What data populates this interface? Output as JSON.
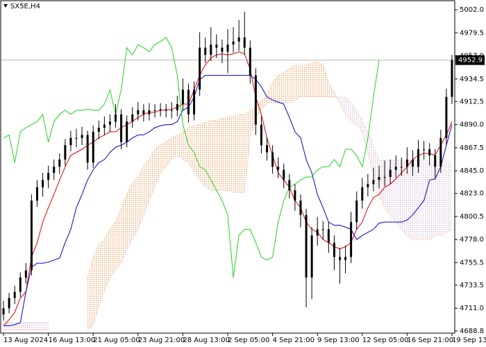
{
  "chart_data": {
    "type": "candlestick",
    "title": "SX5E,H4",
    "categories": [
      "13 Aug 2024",
      null,
      null,
      null,
      null,
      null,
      null,
      null,
      "16 Aug 13:00",
      null,
      null,
      null,
      null,
      null,
      null,
      null,
      "21 Aug 05:00",
      null,
      null,
      null,
      null,
      null,
      null,
      null,
      "23 Aug 21:00",
      null,
      null,
      null,
      null,
      null,
      null,
      null,
      "28 Aug 13:00",
      null,
      null,
      null,
      null,
      null,
      null,
      null,
      "2 Sep 05:00",
      null,
      null,
      null,
      null,
      null,
      null,
      null,
      "4 Sep 21:00",
      null,
      null,
      null,
      null,
      null,
      null,
      null,
      "9 Sep 13:00",
      null,
      null,
      null,
      null,
      null,
      null,
      null,
      "12 Sep 05:00",
      null,
      null,
      null,
      null,
      null,
      null,
      null,
      "16 Sep 21:00",
      null,
      null,
      null,
      null,
      null,
      null,
      null,
      "19 Sep 13:00"
    ],
    "candles": [
      [
        4705,
        4718,
        4699,
        4711
      ],
      [
        4711,
        4726,
        4706,
        4721
      ],
      [
        4721,
        4733,
        4715,
        4727
      ],
      [
        4727,
        4746,
        4722,
        4741
      ],
      [
        4741,
        4755,
        4735,
        4748
      ],
      [
        4748,
        4822,
        4743,
        4816
      ],
      [
        4816,
        4836,
        4810,
        4829
      ],
      [
        4829,
        4843,
        4820,
        4836
      ],
      [
        4836,
        4850,
        4828,
        4843
      ],
      [
        4843,
        4856,
        4836,
        4849
      ],
      [
        4849,
        4862,
        4842,
        4856
      ],
      [
        4856,
        4876,
        4850,
        4870
      ],
      [
        4870,
        4884,
        4864,
        4877
      ],
      [
        4877,
        4886,
        4868,
        4877
      ],
      [
        4877,
        4888,
        4870,
        4880
      ],
      [
        4880,
        4884,
        4846,
        4853
      ],
      [
        4853,
        4889,
        4848,
        4883
      ],
      [
        4883,
        4894,
        4876,
        4887
      ],
      [
        4887,
        4898,
        4880,
        4890
      ],
      [
        4890,
        4900,
        4883,
        4893
      ],
      [
        4893,
        4910,
        4887,
        4900
      ],
      [
        4900,
        4905,
        4866,
        4873
      ],
      [
        4873,
        4899,
        4868,
        4893
      ],
      [
        4893,
        4907,
        4887,
        4900
      ],
      [
        4900,
        4912,
        4894,
        4904
      ],
      [
        4904,
        4910,
        4893,
        4900
      ],
      [
        4900,
        4911,
        4894,
        4904
      ],
      [
        4904,
        4910,
        4897,
        4904
      ],
      [
        4904,
        4911,
        4898,
        4905
      ],
      [
        4905,
        4910,
        4897,
        4904
      ],
      [
        4904,
        4912,
        4896,
        4904
      ],
      [
        4904,
        4918,
        4898,
        4910
      ],
      [
        4910,
        4935,
        4904,
        4924
      ],
      [
        4924,
        4930,
        4892,
        4900
      ],
      [
        4900,
        4932,
        4894,
        4924
      ],
      [
        4924,
        4980,
        4918,
        4965
      ],
      [
        4965,
        4975,
        4950,
        4958
      ],
      [
        4958,
        4985,
        4952,
        4968
      ],
      [
        4968,
        4978,
        4955,
        4965
      ],
      [
        4965,
        4973,
        4950,
        4961
      ],
      [
        4961,
        4983,
        4940,
        4968
      ],
      [
        4968,
        4985,
        4960,
        4971
      ],
      [
        4971,
        4992,
        4962,
        4975
      ],
      [
        4975,
        5000,
        4958,
        4965
      ],
      [
        4965,
        4972,
        4930,
        4938
      ],
      [
        4938,
        4945,
        4880,
        4890
      ],
      [
        4890,
        4898,
        4862,
        4870
      ],
      [
        4870,
        4878,
        4855,
        4863
      ],
      [
        4863,
        4870,
        4842,
        4849
      ],
      [
        4849,
        4858,
        4838,
        4846
      ],
      [
        4846,
        4852,
        4828,
        4836
      ],
      [
        4836,
        4842,
        4818,
        4826
      ],
      [
        4826,
        4832,
        4806,
        4816
      ],
      [
        4816,
        4822,
        4790,
        4802
      ],
      [
        4802,
        4808,
        4712,
        4741
      ],
      [
        4741,
        4790,
        4720,
        4782
      ],
      [
        4782,
        4800,
        4772,
        4788
      ],
      [
        4788,
        4796,
        4778,
        4788
      ],
      [
        4788,
        4795,
        4765,
        4775
      ],
      [
        4775,
        4782,
        4748,
        4761
      ],
      [
        4761,
        4770,
        4735,
        4758
      ],
      [
        4758,
        4772,
        4745,
        4761
      ],
      [
        4761,
        4805,
        4755,
        4795
      ],
      [
        4795,
        4825,
        4788,
        4816
      ],
      [
        4816,
        4838,
        4808,
        4829
      ],
      [
        4829,
        4842,
        4820,
        4832
      ],
      [
        4832,
        4848,
        4825,
        4836
      ],
      [
        4836,
        4850,
        4828,
        4839
      ],
      [
        4839,
        4855,
        4830,
        4839
      ],
      [
        4839,
        4856,
        4832,
        4846
      ],
      [
        4846,
        4860,
        4838,
        4849
      ],
      [
        4849,
        4858,
        4840,
        4849
      ],
      [
        4849,
        4868,
        4842,
        4856
      ],
      [
        4856,
        4865,
        4840,
        4849
      ],
      [
        4849,
        4875,
        4843,
        4866
      ],
      [
        4866,
        4874,
        4856,
        4866
      ],
      [
        4866,
        4872,
        4850,
        4860
      ],
      [
        4860,
        4866,
        4838,
        4849
      ],
      [
        4849,
        4885,
        4843,
        4877
      ],
      [
        4877,
        4925,
        4870,
        4917
      ],
      [
        4917,
        4958,
        4910,
        4952.9
      ]
    ],
    "candle_color": "#000000",
    "lines": [
      {
        "color": "#e00000",
        "values": [
          4694,
          4700,
          4707,
          4721,
          4727,
          4761,
          4775,
          4795,
          4809,
          4822,
          4836,
          4849,
          4860,
          4863,
          4866,
          4870,
          4873,
          4877,
          4880,
          4883,
          4883,
          4887,
          4890,
          4893,
          4897,
          4900,
          4902,
          4902,
          4904,
          4904,
          4905,
          4907,
          4910,
          4910,
          4924,
          4938,
          4948,
          4955,
          4958,
          4959,
          4958,
          4959,
          4961,
          4959,
          4944,
          4917,
          4900,
          4877,
          4860,
          4843,
          4836,
          4829,
          4816,
          4809,
          4795,
          4788,
          4785,
          4778,
          4775,
          4771,
          4769,
          4771,
          4775,
          4788,
          4795,
          4809,
          4819,
          4822,
          4829,
          4832,
          4837,
          4843,
          4849,
          4856,
          4860,
          4862,
          4862,
          4860,
          4870,
          4880,
          4893
        ]
      },
      {
        "color": "#0000c8",
        "values": [
          4694,
          4694,
          4695,
          4697,
          4727,
          4751,
          4755,
          4755,
          4756,
          4758,
          4760,
          4775,
          4788,
          4809,
          4822,
          4836,
          4846,
          4853,
          4856,
          4863,
          4868,
          4870,
          4873,
          4877,
          4880,
          4880,
          4883,
          4887,
          4889,
          4890,
          4890,
          4893,
          4904,
          4907,
          4917,
          4934,
          4938,
          4938,
          4938,
          4938,
          4938,
          4938,
          4938,
          4938,
          4938,
          4934,
          4927,
          4917,
          4914,
          4912,
          4910,
          4897,
          4883,
          4877,
          4856,
          4843,
          4822,
          4809,
          4795,
          4792,
          4792,
          4790,
          4788,
          4778,
          4782,
          4785,
          4788,
          4794,
          4795,
          4795,
          4795,
          4795,
          4797,
          4802,
          4809,
          4816,
          4836,
          4837,
          4849,
          4870,
          4890
        ]
      },
      {
        "color": "#22d022",
        "values": [
          4877,
          4880,
          4853,
          4883,
          4887,
          4890,
          4893,
          4900,
          4873,
          4893,
          4900,
          4904,
          4900,
          4904,
          4904,
          4905,
          4904,
          4904,
          4910,
          4924,
          4900,
          4924,
          4965,
          4958,
          4968,
          4965,
          4961,
          4968,
          4971,
          4975,
          4965,
          4938,
          4890,
          4870,
          4863,
          4849,
          4846,
          4836,
          4826,
          4816,
          4802,
          4741,
          4782,
          4788,
          4788,
          4775,
          4761,
          4758,
          4761,
          4795,
          4816,
          4829,
          4832,
          4836,
          4839,
          4839,
          4846,
          4849,
          4849,
          4856,
          4849,
          4866,
          4866,
          4860,
          4849,
          4877,
          4917,
          4952.9,
          null,
          null,
          null,
          null,
          null,
          null,
          null,
          null,
          null,
          null,
          null,
          null,
          null
        ]
      }
    ],
    "cloud": {
      "span_a": [
        4690,
        4690,
        4690,
        4690,
        4690,
        4690,
        4690,
        4690,
        4690,
        null,
        null,
        null,
        null,
        null,
        null,
        4741,
        4761,
        4772,
        4778,
        4788,
        4795,
        4809,
        4822,
        4833,
        4839,
        4850,
        4856,
        4866,
        4870,
        4873,
        4877,
        4880,
        4883,
        4887,
        4889,
        4890,
        4892,
        4894,
        4894,
        4896,
        4897,
        4898,
        4900,
        4900,
        4904,
        4907,
        4914,
        4917,
        4931,
        4938,
        4941,
        4944,
        4948,
        4948,
        4948,
        4950,
        4951,
        4948,
        4931,
        4921,
        4911,
        4900,
        4894,
        4890,
        4883,
        4863,
        4843,
        4822,
        4809,
        4802,
        4795,
        4788,
        4782,
        4778,
        4778,
        4778,
        4778,
        4782,
        4782,
        4785,
        4788
      ],
      "span_b": [
        4697,
        4697,
        4697,
        4697,
        4697,
        4697,
        4697,
        4697,
        4697,
        null,
        null,
        null,
        null,
        null,
        null,
        4690,
        4694,
        4714,
        4727,
        4741,
        4748,
        4755,
        4768,
        4778,
        4788,
        4802,
        4816,
        4829,
        4843,
        4849,
        4856,
        4860,
        4856,
        4853,
        4843,
        4836,
        4829,
        4826,
        4826,
        4826,
        4826,
        4824,
        4824,
        4824,
        4877,
        4897,
        4904,
        4911,
        4911,
        4911,
        4911,
        4911,
        4914,
        4917,
        4917,
        4917,
        4917,
        4917,
        4917,
        4917,
        4917,
        4917,
        4911,
        4904,
        4894,
        4883,
        4870,
        4856,
        4855,
        4855,
        4855,
        4855,
        4855,
        4855,
        4855,
        4855,
        4855,
        4854,
        4854,
        4854,
        4854
      ],
      "colors": [
        "#f0a060",
        "#d8b8d8"
      ]
    },
    "last_price": 4952.9,
    "last_price_color": "#000000",
    "ylim": [
      4686.8,
      5010.8
    ],
    "yticks": [
      {
        "value": 5002,
        "label": "5002.0"
      },
      4979.5,
      {
        "value": 4957,
        "label": "4957.0"
      },
      4934.5,
      4912.5,
      {
        "value": 4890,
        "label": "4890.0"
      },
      4867.5,
      {
        "value": 4845,
        "label": "4845.0"
      },
      {
        "value": 4823,
        "label": "4823.0"
      },
      4800.5,
      {
        "value": 4778,
        "label": "4778.0"
      },
      4755.5,
      4733.5,
      {
        "value": 4711,
        "label": "4711.0"
      },
      4688.8
    ],
    "grid": false
  }
}
